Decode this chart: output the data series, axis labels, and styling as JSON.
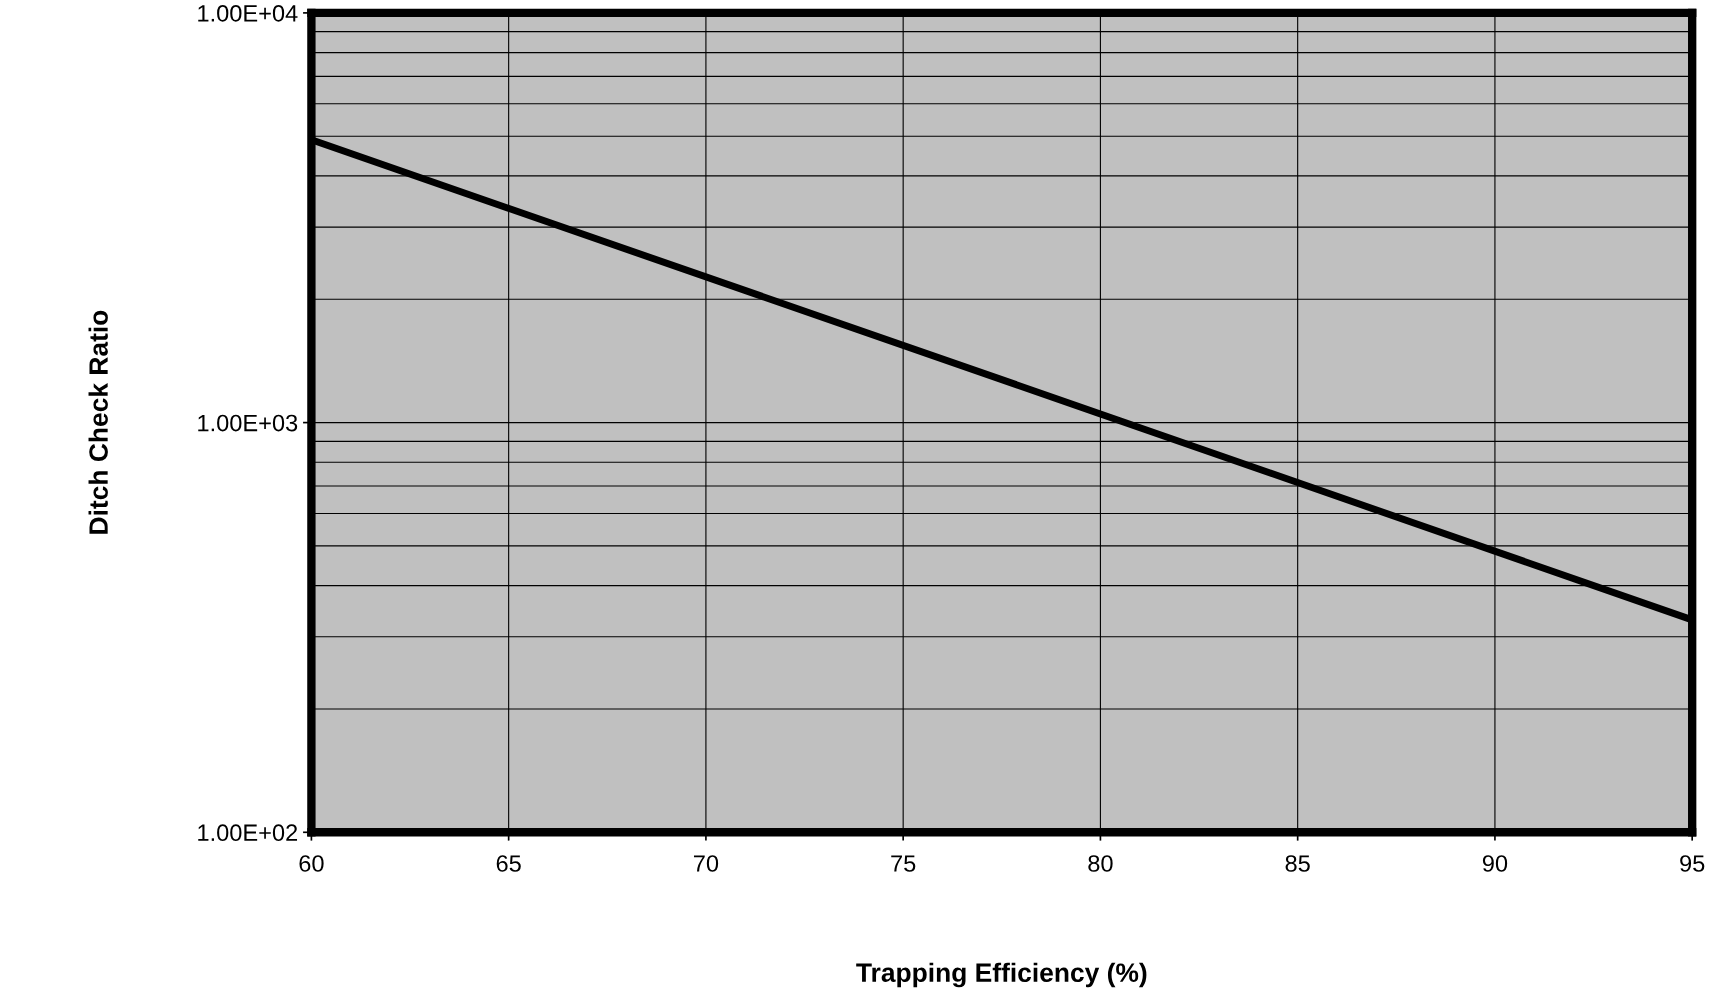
{
  "chart_data": {
    "type": "line",
    "xlabel": "Trapping Efficiency (%)",
    "ylabel": "Ditch Check Ratio",
    "x": [
      60,
      80,
      95
    ],
    "series": [
      {
        "color": "#000000",
        "values": [
          4900,
          1050,
          330
        ]
      }
    ],
    "xlim": [
      60,
      95
    ],
    "xticks": [
      60,
      65,
      70,
      75,
      80,
      85,
      90,
      95
    ],
    "ylim": [
      100,
      10000
    ],
    "yticks": [
      {
        "value": 100,
        "label": "1.00E+02"
      },
      {
        "value": 1000,
        "label": "1.00E+03"
      },
      {
        "value": 10000,
        "label": "1.00E+04"
      }
    ],
    "log": "y",
    "grid": true
  }
}
